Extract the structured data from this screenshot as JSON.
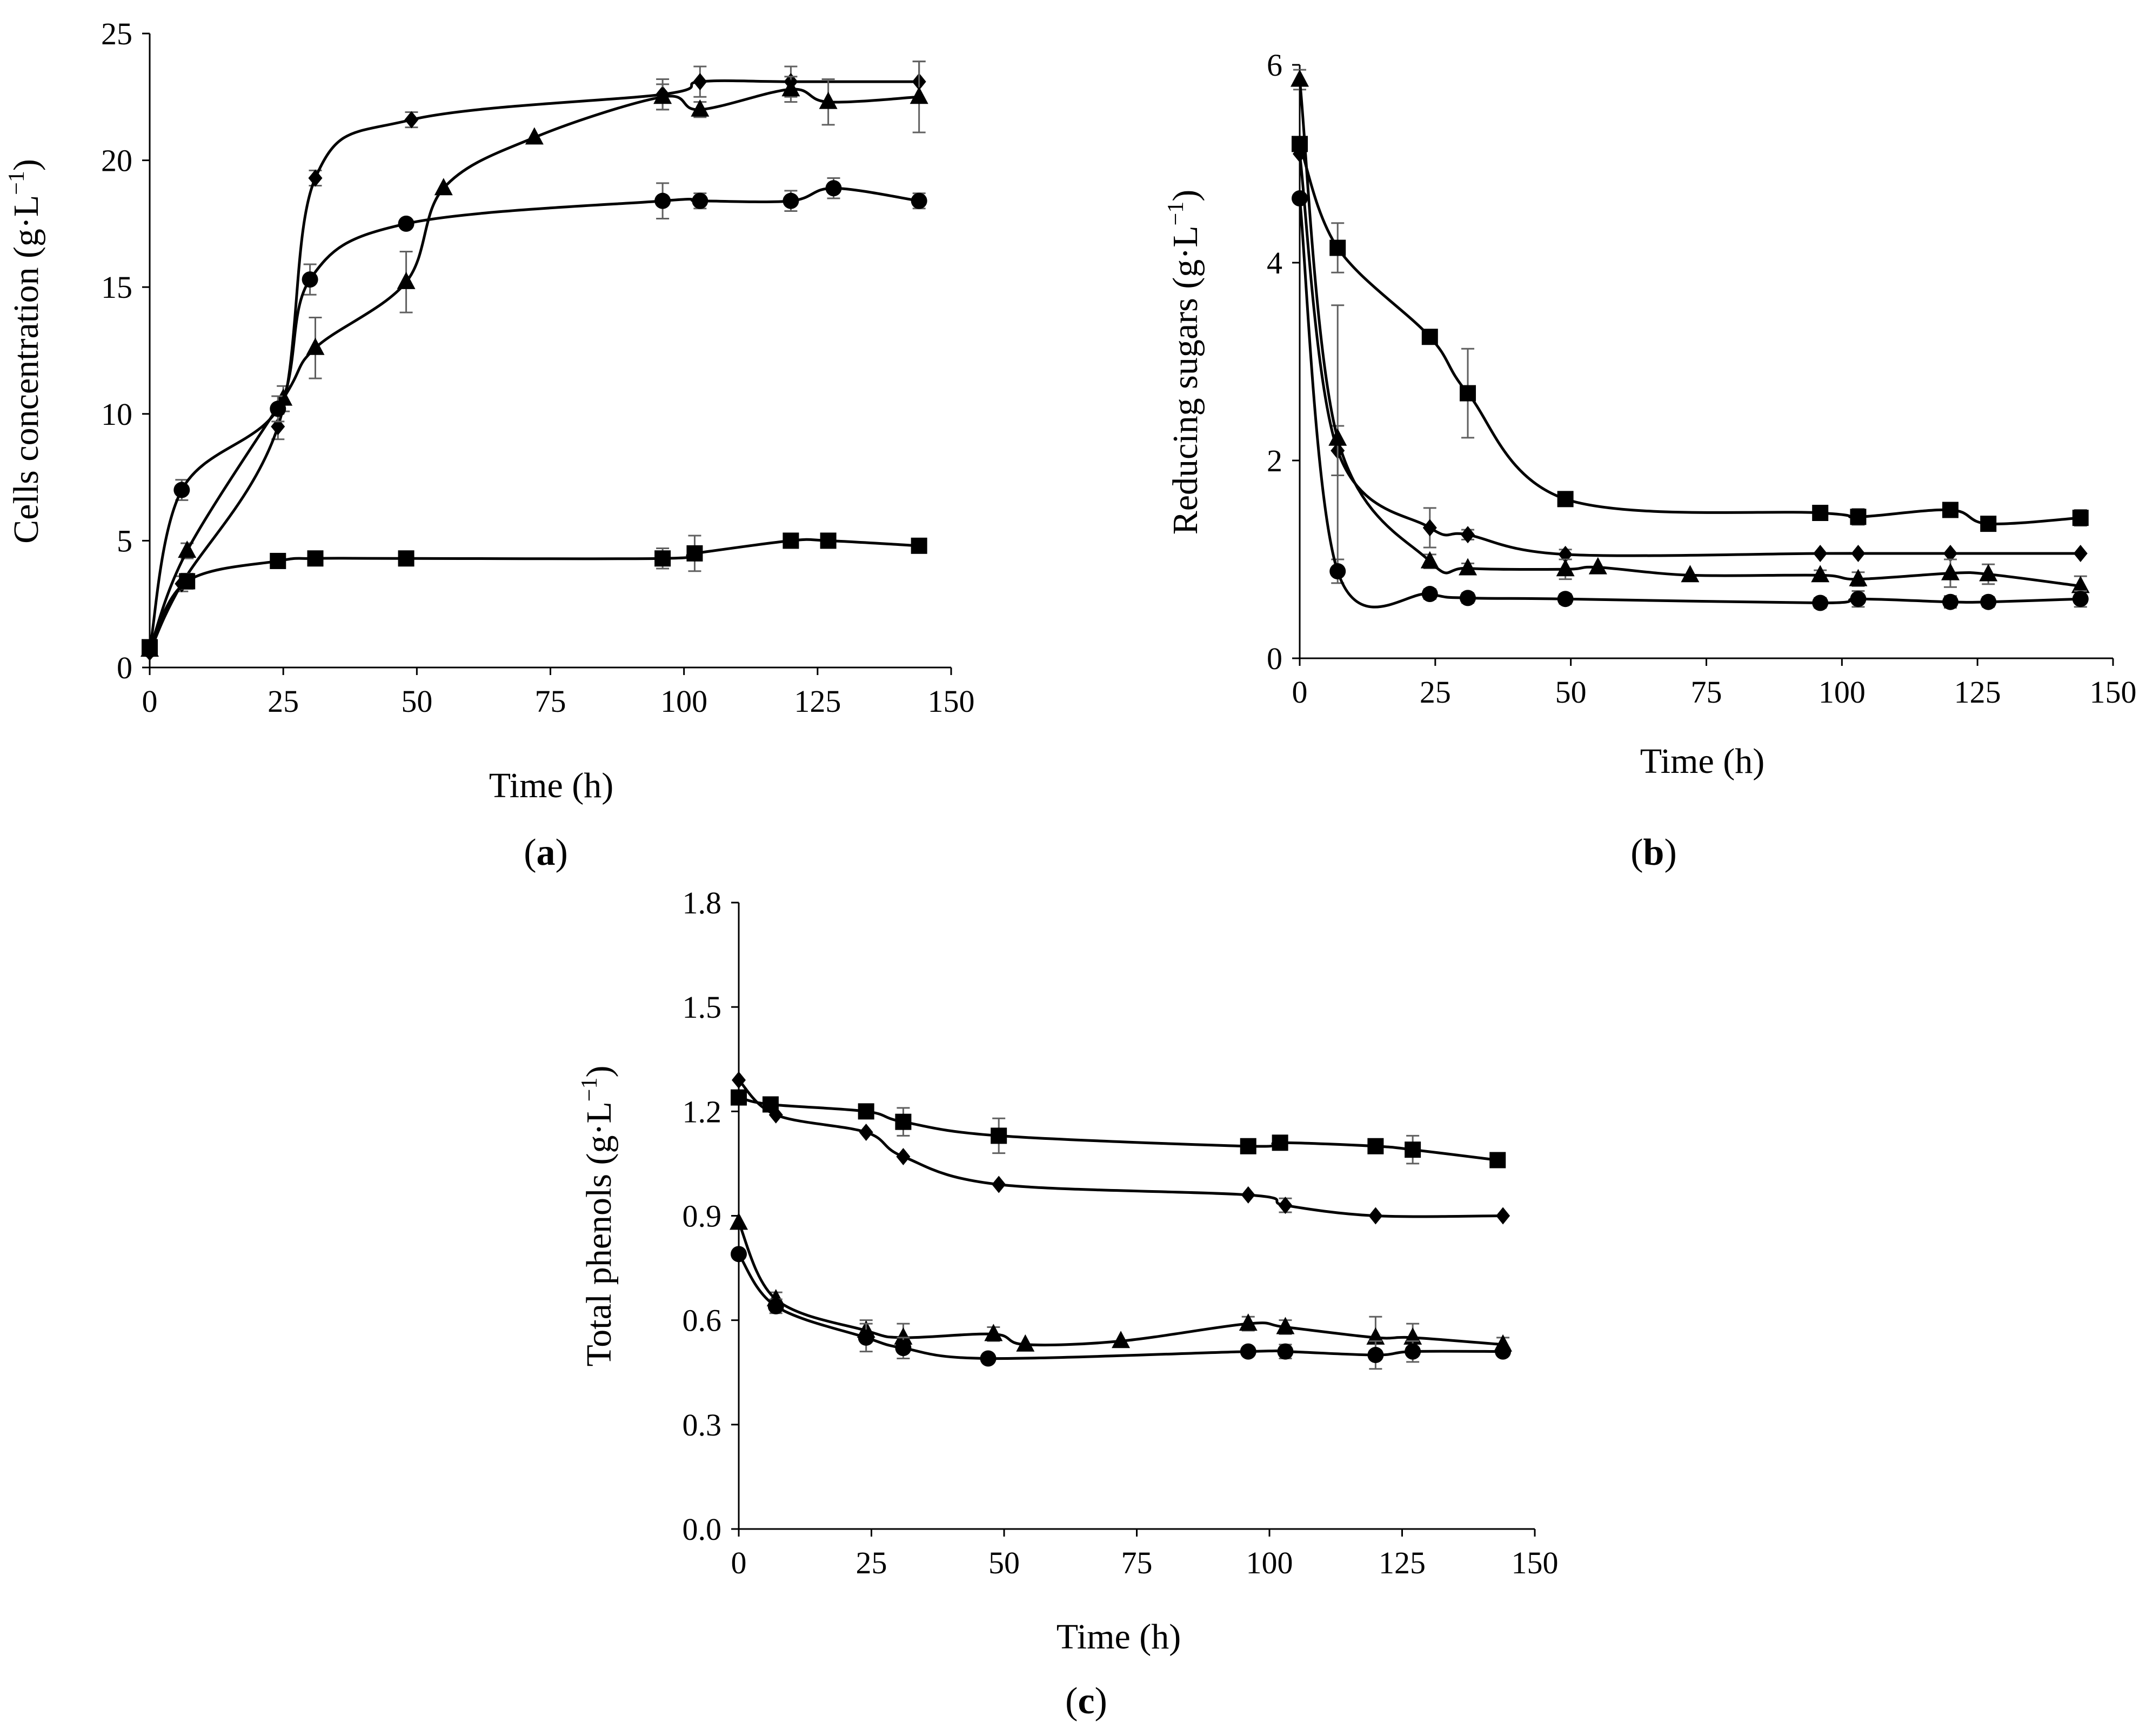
{
  "chart_data": [
    {
      "type": "line",
      "panel_label": "a",
      "xlabel": "Time (h)",
      "ylabel_main": "Cells concentration (g·L",
      "ylabel_sup": "−1",
      "ylabel_close": ")",
      "xlim": [
        0,
        150
      ],
      "ylim": [
        0,
        25
      ],
      "xticks": [
        "0",
        "25",
        "50",
        "75",
        "100",
        "125",
        "150"
      ],
      "yticks": [
        "0",
        "5",
        "10",
        "15",
        "20",
        "25"
      ],
      "grid": false,
      "series": [
        {
          "name": "diamond",
          "marker": "diamond",
          "x": [
            0,
            6,
            24,
            31,
            49,
            96,
            103,
            120,
            144
          ],
          "y": [
            0.6,
            3.3,
            9.5,
            19.3,
            21.6,
            22.6,
            23.1,
            23.1,
            23.1
          ],
          "err": [
            0,
            0.3,
            0.5,
            0.3,
            0.3,
            0.6,
            0.6,
            0.6,
            0.8
          ]
        },
        {
          "name": "triangle",
          "marker": "triangle",
          "x": [
            0,
            7,
            25,
            31,
            48,
            55,
            72,
            96,
            103,
            120,
            127,
            144
          ],
          "y": [
            0.7,
            4.6,
            10.6,
            12.6,
            15.2,
            18.9,
            20.9,
            22.5,
            22.0,
            22.8,
            22.3,
            22.5
          ],
          "err": [
            0,
            0.3,
            0.5,
            1.2,
            1.2,
            0,
            0,
            0.5,
            0.3,
            0.5,
            0.9,
            1.4
          ]
        },
        {
          "name": "circle",
          "marker": "circle",
          "x": [
            0,
            6,
            24,
            30,
            48,
            96,
            103,
            120,
            128,
            144
          ],
          "y": [
            0.7,
            7.0,
            10.2,
            15.3,
            17.5,
            18.4,
            18.4,
            18.4,
            18.9,
            18.4
          ],
          "err": [
            0,
            0.4,
            0.5,
            0.6,
            0,
            0.7,
            0.3,
            0.4,
            0.4,
            0.3
          ]
        },
        {
          "name": "square",
          "marker": "square",
          "x": [
            0,
            7,
            24,
            31,
            48,
            96,
            102,
            120,
            127,
            144
          ],
          "y": [
            0.8,
            3.4,
            4.2,
            4.3,
            4.3,
            4.3,
            4.5,
            5.0,
            5.0,
            4.8
          ],
          "err": [
            0,
            0.3,
            0.2,
            0.2,
            0.2,
            0.4,
            0.7,
            0.2,
            0.2,
            0.2
          ]
        }
      ]
    },
    {
      "type": "line",
      "panel_label": "b",
      "xlabel": "Time (h)",
      "ylabel_main": "Reducing sugars (g·L",
      "ylabel_sup": "−1",
      "ylabel_close": ")",
      "xlim": [
        0,
        150
      ],
      "ylim": [
        0,
        6
      ],
      "xticks": [
        "0",
        "25",
        "50",
        "75",
        "100",
        "125",
        "150"
      ],
      "yticks": [
        "0",
        "2",
        "4",
        "6"
      ],
      "grid": false,
      "series": [
        {
          "name": "square",
          "marker": "square",
          "x": [
            0,
            7,
            24,
            31,
            49,
            96,
            103,
            120,
            127,
            144
          ],
          "y": [
            5.2,
            4.15,
            3.25,
            2.68,
            1.61,
            1.47,
            1.43,
            1.5,
            1.36,
            1.42
          ],
          "err": [
            0,
            0.25,
            0.05,
            0.45,
            0.06,
            0.05,
            0.08,
            0.04,
            0.05,
            0.08
          ]
        },
        {
          "name": "diamond",
          "marker": "diamond",
          "x": [
            0,
            7,
            24,
            31,
            49,
            96,
            103,
            120,
            144
          ],
          "y": [
            5.1,
            2.1,
            1.32,
            1.25,
            1.05,
            1.06,
            1.06,
            1.06,
            1.06
          ],
          "err": [
            0,
            0.25,
            0.2,
            0.05,
            0.05,
            0,
            0,
            0,
            0
          ]
        },
        {
          "name": "triangle",
          "marker": "triangle",
          "x": [
            0,
            7,
            24,
            31,
            49,
            55,
            72,
            96,
            103,
            120,
            127,
            144
          ],
          "y": [
            5.85,
            2.22,
            0.98,
            0.91,
            0.9,
            0.92,
            0.84,
            0.84,
            0.8,
            0.86,
            0.85,
            0.73
          ],
          "err": [
            0.1,
            1.35,
            0.07,
            0.05,
            0.1,
            0,
            0,
            0.05,
            0.07,
            0.14,
            0.1,
            0.1
          ]
        },
        {
          "name": "circle",
          "marker": "circle",
          "x": [
            0,
            7,
            24,
            31,
            49,
            96,
            103,
            120,
            127,
            144
          ],
          "y": [
            4.65,
            0.88,
            0.65,
            0.61,
            0.6,
            0.56,
            0.6,
            0.57,
            0.57,
            0.6
          ],
          "err": [
            0,
            0.12,
            0.05,
            0.05,
            0.05,
            0.05,
            0.08,
            0.06,
            0.05,
            0.08
          ]
        }
      ]
    },
    {
      "type": "line",
      "panel_label": "c",
      "xlabel": "Time (h)",
      "ylabel_main": "Total phenols (g·L",
      "ylabel_sup": "−1",
      "ylabel_close": ")",
      "xlim": [
        0,
        150
      ],
      "ylim": [
        0,
        1.8
      ],
      "xticks": [
        "0",
        "25",
        "50",
        "75",
        "100",
        "125",
        "150"
      ],
      "yticks": [
        "0.0",
        "0.3",
        "0.6",
        "0.9",
        "1.2",
        "1.5",
        "1.8"
      ],
      "grid": false,
      "series": [
        {
          "name": "square",
          "marker": "square",
          "x": [
            0,
            6,
            24,
            31,
            49,
            96,
            102,
            120,
            127,
            143
          ],
          "y": [
            1.24,
            1.22,
            1.2,
            1.17,
            1.13,
            1.1,
            1.11,
            1.1,
            1.09,
            1.06
          ],
          "err": [
            0,
            0.02,
            0.02,
            0.04,
            0.05,
            0.02,
            0.02,
            0.02,
            0.04,
            0.02
          ]
        },
        {
          "name": "diamond",
          "marker": "diamond",
          "x": [
            0,
            7,
            24,
            31,
            49,
            96,
            103,
            120,
            144
          ],
          "y": [
            1.29,
            1.19,
            1.14,
            1.07,
            0.99,
            0.96,
            0.93,
            0.9,
            0.9
          ],
          "err": [
            0,
            0,
            0,
            0,
            0,
            0,
            0.02,
            0,
            0
          ]
        },
        {
          "name": "triangle",
          "marker": "triangle",
          "x": [
            0,
            7,
            24,
            31,
            48,
            54,
            72,
            96,
            103,
            120,
            127,
            144
          ],
          "y": [
            0.88,
            0.66,
            0.57,
            0.55,
            0.56,
            0.53,
            0.54,
            0.59,
            0.58,
            0.55,
            0.55,
            0.53
          ],
          "err": [
            0,
            0.02,
            0.03,
            0.04,
            0.02,
            0,
            0,
            0.02,
            0.02,
            0.06,
            0.04,
            0.02
          ]
        },
        {
          "name": "circle",
          "marker": "circle",
          "x": [
            0,
            7,
            24,
            31,
            47,
            96,
            103,
            120,
            127,
            144
          ],
          "y": [
            0.79,
            0.64,
            0.55,
            0.52,
            0.49,
            0.51,
            0.51,
            0.5,
            0.51,
            0.51
          ],
          "err": [
            0,
            0.02,
            0.04,
            0.03,
            0.01,
            0.01,
            0.02,
            0.04,
            0.03,
            0.01
          ]
        }
      ]
    }
  ]
}
